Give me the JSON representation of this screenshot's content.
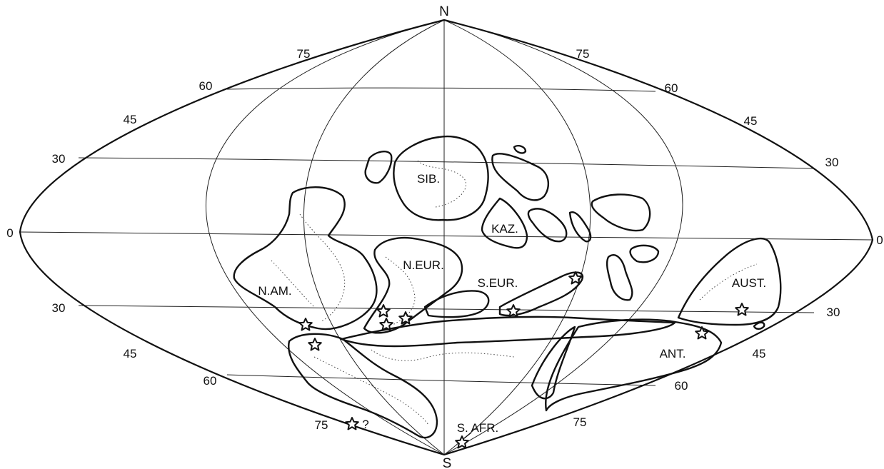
{
  "poles": {
    "north": "N",
    "south": "S"
  },
  "latitude_labels": {
    "left": [
      "75",
      "60",
      "45",
      "30",
      "0",
      "30",
      "45",
      "60",
      "75"
    ],
    "right": [
      "75",
      "60",
      "45",
      "30",
      "0",
      "30",
      "45",
      "60",
      "75"
    ]
  },
  "regions": [
    "SIB.",
    "KAZ.",
    "N.EUR.",
    "S.EUR.",
    "N.AM.",
    "AUST.",
    "ANT.",
    "S. AFR."
  ],
  "annotations": {
    "question_mark": "?"
  },
  "colors": {
    "line": "#111111",
    "background": "#ffffff"
  }
}
